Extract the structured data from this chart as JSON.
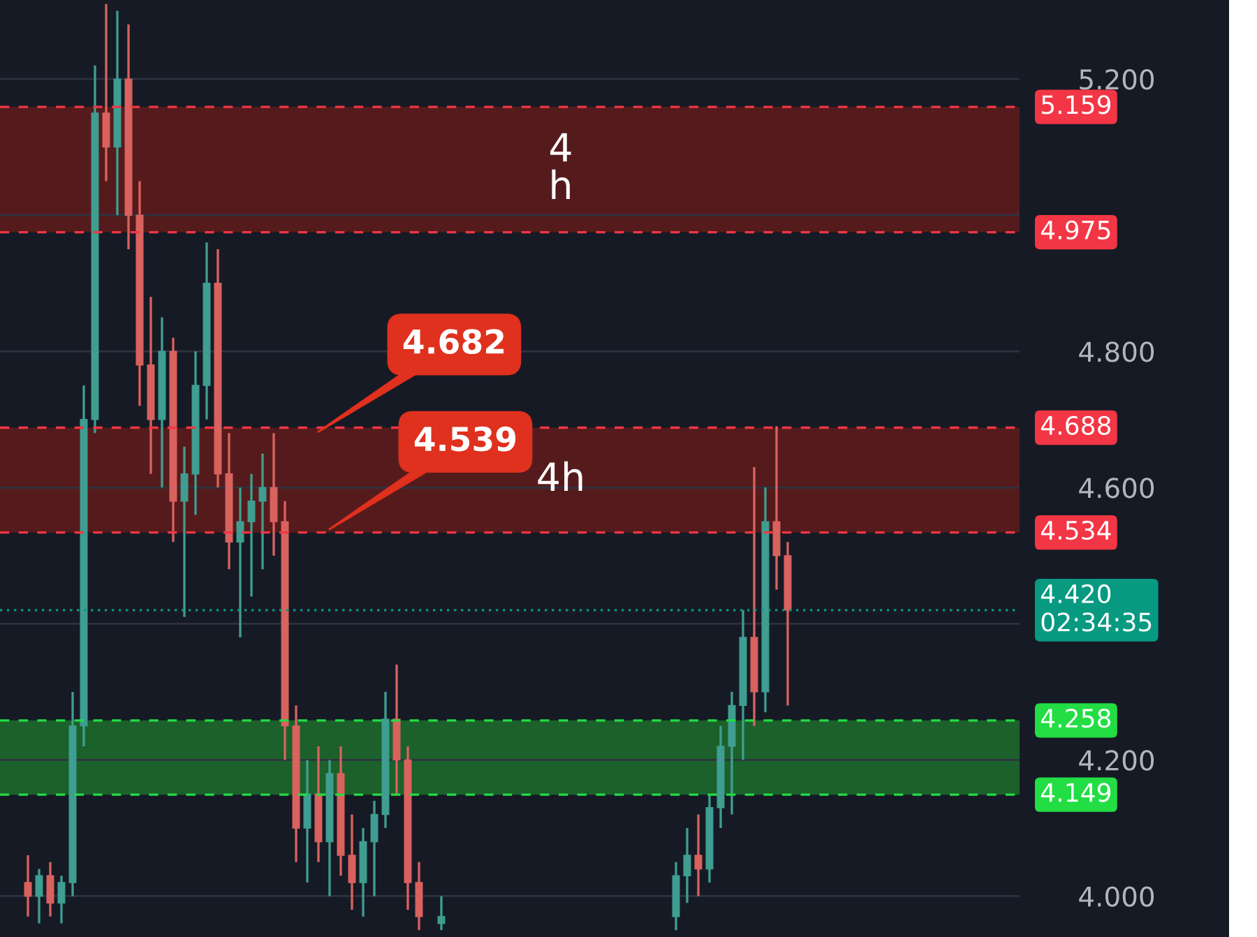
{
  "chart_data": {
    "type": "candlestick",
    "categories": [
      null,
      null,
      null,
      null,
      null,
      null,
      null,
      null,
      null,
      null,
      null,
      null,
      null,
      null,
      null,
      null,
      null,
      null,
      null,
      null,
      null,
      null,
      null,
      null,
      null,
      null,
      null,
      null,
      null,
      null,
      null,
      null,
      null,
      null,
      null,
      null,
      null,
      null,
      null,
      null,
      null,
      null,
      null,
      null,
      null,
      null,
      null,
      null,
      null,
      null,
      null,
      null,
      null,
      null,
      null,
      null,
      null,
      null,
      null,
      null,
      null,
      null,
      null,
      null,
      null,
      null,
      null,
      null,
      null,
      null,
      null,
      null,
      null,
      null,
      null,
      null,
      null,
      null,
      null,
      null,
      null,
      null,
      null,
      null,
      null,
      null,
      null,
      null,
      null
    ],
    "ohlc": [
      [
        4.02,
        4.06,
        3.97,
        4.0
      ],
      [
        4.0,
        4.04,
        3.96,
        4.03
      ],
      [
        4.03,
        4.05,
        3.97,
        3.99
      ],
      [
        3.99,
        4.03,
        3.96,
        4.02
      ],
      [
        4.02,
        4.3,
        4.0,
        4.25
      ],
      [
        4.25,
        4.75,
        4.22,
        4.7
      ],
      [
        4.7,
        5.22,
        4.68,
        5.15
      ],
      [
        5.15,
        5.31,
        5.05,
        5.1
      ],
      [
        5.1,
        5.3,
        5.0,
        5.2
      ],
      [
        5.2,
        5.28,
        4.95,
        5.0
      ],
      [
        5.0,
        5.05,
        4.72,
        4.78
      ],
      [
        4.78,
        4.88,
        4.62,
        4.7
      ],
      [
        4.7,
        4.85,
        4.6,
        4.8
      ],
      [
        4.8,
        4.82,
        4.52,
        4.58
      ],
      [
        4.58,
        4.66,
        4.41,
        4.62
      ],
      [
        4.62,
        4.8,
        4.56,
        4.75
      ],
      [
        4.75,
        4.96,
        4.7,
        4.9
      ],
      [
        4.9,
        4.95,
        4.6,
        4.62
      ],
      [
        4.62,
        4.68,
        4.48,
        4.52
      ],
      [
        4.52,
        4.6,
        4.38,
        4.55
      ],
      [
        4.55,
        4.62,
        4.44,
        4.58
      ],
      [
        4.58,
        4.65,
        4.48,
        4.6
      ],
      [
        4.6,
        4.68,
        4.5,
        4.55
      ],
      [
        4.55,
        4.58,
        4.2,
        4.25
      ],
      [
        4.25,
        4.28,
        4.05,
        4.1
      ],
      [
        4.1,
        4.2,
        4.02,
        4.15
      ],
      [
        4.15,
        4.22,
        4.05,
        4.08
      ],
      [
        4.08,
        4.2,
        4.0,
        4.18
      ],
      [
        4.18,
        4.22,
        4.03,
        4.06
      ],
      [
        4.06,
        4.12,
        3.98,
        4.02
      ],
      [
        4.02,
        4.1,
        3.97,
        4.08
      ],
      [
        4.08,
        4.14,
        4.0,
        4.12
      ],
      [
        4.12,
        4.3,
        4.1,
        4.26
      ],
      [
        4.26,
        4.34,
        4.15,
        4.2
      ],
      [
        4.2,
        4.22,
        3.98,
        4.02
      ],
      [
        4.02,
        4.05,
        3.95,
        3.97
      ],
      null,
      [
        3.96,
        4.0,
        3.95,
        3.97
      ],
      null,
      null,
      null,
      null,
      null,
      null,
      null,
      null,
      null,
      null,
      null,
      null,
      null,
      null,
      null,
      null,
      null,
      null,
      null,
      null,
      [
        3.97,
        4.05,
        3.95,
        4.03
      ],
      [
        4.03,
        4.1,
        3.99,
        4.06
      ],
      [
        4.06,
        4.12,
        4.0,
        4.04
      ],
      [
        4.04,
        4.15,
        4.02,
        4.13
      ],
      [
        4.13,
        4.25,
        4.1,
        4.22
      ],
      [
        4.22,
        4.3,
        4.12,
        4.28
      ],
      [
        4.28,
        4.42,
        4.2,
        4.38
      ],
      [
        4.38,
        4.63,
        4.25,
        4.3
      ],
      [
        4.3,
        4.6,
        4.27,
        4.55
      ],
      [
        4.55,
        4.69,
        4.45,
        4.5
      ],
      [
        4.5,
        4.52,
        4.28,
        4.42
      ],
      null,
      null,
      null,
      null,
      null,
      null,
      null,
      null,
      null,
      null,
      null,
      null,
      null,
      null,
      null,
      null,
      null,
      null,
      null,
      null
    ],
    "ylim": [
      3.94,
      5.316
    ],
    "yticks": [
      {
        "value": 4.0,
        "label": "4.000"
      },
      {
        "value": 4.2,
        "label": "4.200"
      },
      {
        "value": 4.4,
        "label": null
      },
      {
        "value": 4.6,
        "label": "4.600"
      },
      {
        "value": 4.8,
        "label": "4.800"
      },
      {
        "value": 5.0,
        "label": null
      },
      {
        "value": 5.2,
        "label": "5.200"
      }
    ],
    "grid": "y",
    "ref_lines": [
      {
        "axis": "y",
        "value": 5.159,
        "label": "5.159",
        "color": "#f23645",
        "line_style": "dashed"
      },
      {
        "axis": "y",
        "value": 4.975,
        "label": "4.975",
        "color": "#f23645",
        "line_style": "dashed"
      },
      {
        "axis": "y",
        "value": 4.688,
        "label": "4.688",
        "color": "#f23645",
        "line_style": "dashed"
      },
      {
        "axis": "y",
        "value": 4.534,
        "label": "4.534",
        "color": "#f23645",
        "line_style": "dashed"
      },
      {
        "axis": "y",
        "value": 4.42,
        "label": "4.420\n02:34:35",
        "color": "#089981",
        "line_style": "dotted"
      },
      {
        "axis": "y",
        "value": 4.258,
        "label": "4.258",
        "color": "#22dd44",
        "line_style": "dashed"
      },
      {
        "axis": "y",
        "value": 4.149,
        "label": "4.149",
        "color": "#22dd44",
        "line_style": "dashed"
      }
    ],
    "bands": [
      {
        "axis": "y",
        "from": 4.975,
        "to": 5.159,
        "label": "4\nh",
        "color": "#6b1c1a"
      },
      {
        "axis": "y",
        "from": 4.534,
        "to": 4.688,
        "label": "4h",
        "color": "#6b1c1a"
      },
      {
        "axis": "y",
        "from": 4.149,
        "to": 4.258,
        "color": "#1f7a2e"
      }
    ],
    "annotations": [
      {
        "text": "4.682",
        "y": 4.682
      },
      {
        "text": "4.539",
        "y": 4.539
      }
    ]
  }
}
